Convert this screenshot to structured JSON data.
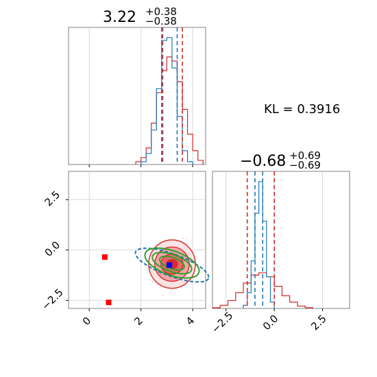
{
  "chart_data": [
    {
      "panel": "top-left",
      "type": "histogram",
      "title": {
        "value": "3.22",
        "sup": "+0.38",
        "sub": "−0.38"
      },
      "xlim": [
        -0.8,
        4.5
      ],
      "grid": true,
      "x_ticks": [
        0,
        2,
        4
      ],
      "series": [
        {
          "color": "#d62728",
          "edges": [
            1.8,
            2.0,
            2.2,
            2.4,
            2.6,
            2.8,
            3.0,
            3.2,
            3.4,
            3.6,
            3.8,
            4.0,
            4.2,
            4.4
          ],
          "counts": [
            2,
            5,
            12,
            30,
            52,
            68,
            78,
            75,
            60,
            40,
            22,
            10,
            3
          ]
        },
        {
          "color": "#1f77b4",
          "edges": [
            2.0,
            2.2,
            2.4,
            2.6,
            2.8,
            3.0,
            3.2,
            3.4,
            3.6,
            3.8,
            4.0
          ],
          "counts": [
            2,
            8,
            25,
            55,
            90,
            92,
            70,
            35,
            10,
            2
          ]
        }
      ],
      "vlines": [
        {
          "x": 2.84,
          "color": "#d62728"
        },
        {
          "x": 3.6,
          "color": "#d62728"
        },
        {
          "x": 2.8,
          "color": "#1f77b4"
        },
        {
          "x": 3.4,
          "color": "#1f77b4"
        }
      ]
    },
    {
      "panel": "bottom-left",
      "type": "scatter",
      "xlim": [
        -0.8,
        4.5
      ],
      "ylim": [
        -2.9,
        3.9
      ],
      "grid": true,
      "x_ticks": [
        0,
        2,
        4
      ],
      "y_ticks": [
        -2.5,
        0.0,
        2.5
      ],
      "y_tick_labels": [
        "−2.5",
        "0.0",
        "2.5"
      ],
      "x_tick_labels": [
        "0",
        "2",
        "4"
      ],
      "red_contours": {
        "center": [
          3.2,
          -0.7
        ],
        "radii": [
          [
            1.9,
            2.4
          ],
          [
            1.4,
            1.7
          ],
          [
            0.9,
            1.0
          ],
          [
            0.45,
            0.45
          ]
        ]
      },
      "red_markers": [
        {
          "x": 0.6,
          "y": -0.35
        },
        {
          "x": 0.75,
          "y": -2.6
        }
      ],
      "blue_marker": {
        "x": 3.1,
        "y": -0.75
      },
      "green_ellipses": {
        "center": [
          3.2,
          -0.65
        ],
        "angle": 20,
        "radii": [
          [
            1.1,
            0.6
          ],
          [
            0.8,
            0.42
          ],
          [
            0.5,
            0.28
          ]
        ]
      },
      "blue_ellipse": {
        "center": [
          3.2,
          -0.75
        ],
        "angle": 20,
        "radii": [
          1.5,
          0.55
        ]
      }
    },
    {
      "panel": "bottom-right",
      "type": "histogram",
      "title": {
        "value": "−0.68",
        "sup": "+0.69",
        "sub": "−0.69"
      },
      "xlim": [
        -3.2,
        3.9
      ],
      "grid": true,
      "x_ticks": [
        -2.5,
        0.0,
        2.5
      ],
      "x_tick_labels": [
        "−2.5",
        "0.0",
        "2.5"
      ],
      "series": [
        {
          "color": "#d62728",
          "edges": [
            -3.2,
            -2.8,
            -2.4,
            -2.0,
            -1.6,
            -1.2,
            -0.8,
            -0.4,
            0.0,
            0.4,
            0.8,
            1.2,
            1.6,
            2.0
          ],
          "counts": [
            1,
            4,
            10,
            20,
            32,
            42,
            45,
            40,
            28,
            16,
            8,
            3,
            1
          ]
        },
        {
          "color": "#1f77b4",
          "edges": [
            -1.6,
            -1.4,
            -1.2,
            -1.0,
            -0.8,
            -0.6,
            -0.4,
            -0.2,
            0.0
          ],
          "counts": [
            4,
            20,
            60,
            120,
            160,
            110,
            40,
            8
          ]
        }
      ],
      "vlines": [
        {
          "x": -1.4,
          "color": "#d62728"
        },
        {
          "x": 0.0,
          "color": "#d62728"
        },
        {
          "x": -1.0,
          "color": "#1f77b4"
        },
        {
          "x": -0.6,
          "color": "#1f77b4"
        }
      ]
    }
  ],
  "annotation": {
    "text": "KL = 0.3916"
  }
}
